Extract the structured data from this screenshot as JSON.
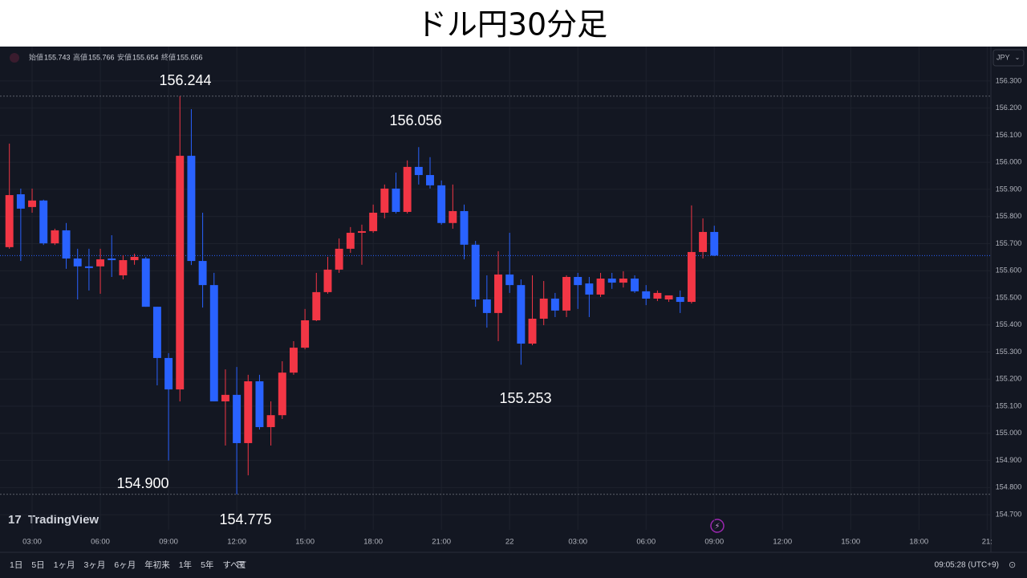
{
  "chart_data": {
    "type": "candlestick",
    "title": "ドル円30分足",
    "currency": "JPY",
    "brand": "TradingView",
    "ohlc_labels": [
      "始値",
      "高値",
      "安値",
      "終値"
    ],
    "ranges": [
      "1日",
      "5日",
      "1ヶ月",
      "3ヶ月",
      "6ヶ月",
      "年初来",
      "1年",
      "5年",
      "すべて"
    ],
    "clock": "09:05:28 (UTC+9)",
    "up_color": "#f23645",
    "down_color": "#2962ff",
    "grid": true,
    "open": [
      155.687,
      155.882,
      155.835,
      155.859,
      155.701,
      155.749,
      155.645,
      155.616,
      155.616,
      155.645,
      155.583,
      155.639,
      155.645,
      155.467,
      155.278,
      155.162,
      156.024,
      155.636,
      155.547,
      155.118,
      155.142,
      154.964,
      155.192,
      155.023,
      155.067,
      155.224,
      155.316,
      155.417,
      155.521,
      155.604,
      155.681,
      155.74,
      155.746,
      155.814,
      155.903,
      155.817,
      155.983,
      155.953,
      155.915,
      155.776,
      155.82,
      155.696,
      155.494,
      155.444,
      155.586,
      155.547,
      155.331,
      155.423,
      155.497,
      155.453,
      155.577,
      155.553,
      155.512,
      155.571,
      155.556,
      155.571,
      155.524,
      155.497,
      155.494,
      155.503,
      155.485,
      155.669,
      155.743
    ],
    "high": [
      156.069,
      155.903,
      155.903,
      155.862,
      155.755,
      155.776,
      155.681,
      155.681,
      155.681,
      155.731,
      155.657,
      155.663,
      155.651,
      155.467,
      155.296,
      156.244,
      156.196,
      155.814,
      155.592,
      155.236,
      155.245,
      155.216,
      155.216,
      155.118,
      155.266,
      155.34,
      155.459,
      155.592,
      155.651,
      155.719,
      155.761,
      155.77,
      155.844,
      155.918,
      155.962,
      156.007,
      156.056,
      156.019,
      155.933,
      155.918,
      155.844,
      155.71,
      155.583,
      155.672,
      155.74,
      155.568,
      155.583,
      155.562,
      155.518,
      155.583,
      155.592,
      155.577,
      155.592,
      155.592,
      155.598,
      155.583,
      155.547,
      155.527,
      155.503,
      155.527,
      155.841,
      155.793,
      155.766
    ],
    "low": [
      155.681,
      155.636,
      155.814,
      155.695,
      155.695,
      155.607,
      155.494,
      155.527,
      155.515,
      155.577,
      155.568,
      155.622,
      155.467,
      155.177,
      154.9,
      155.118,
      155.621,
      155.464,
      155.118,
      154.955,
      154.775,
      154.845,
      155.014,
      154.955,
      155.053,
      155.216,
      155.31,
      155.414,
      155.515,
      155.592,
      155.666,
      155.622,
      155.74,
      155.793,
      155.811,
      155.811,
      155.918,
      155.903,
      155.77,
      155.755,
      155.642,
      155.467,
      155.39,
      155.34,
      155.518,
      155.253,
      155.325,
      155.399,
      155.429,
      155.429,
      155.459,
      155.429,
      155.503,
      155.533,
      155.538,
      155.518,
      155.473,
      155.488,
      155.485,
      155.444,
      155.479,
      155.645,
      155.654
    ],
    "close": [
      155.879,
      155.829,
      155.859,
      155.701,
      155.749,
      155.645,
      155.616,
      155.61,
      155.642,
      155.639,
      155.639,
      155.651,
      155.467,
      155.278,
      155.162,
      156.024,
      155.636,
      155.547,
      155.118,
      155.142,
      154.964,
      155.192,
      155.023,
      155.067,
      155.224,
      155.316,
      155.417,
      155.521,
      155.604,
      155.681,
      155.74,
      155.746,
      155.814,
      155.903,
      155.817,
      155.983,
      155.953,
      155.915,
      155.776,
      155.82,
      155.696,
      155.494,
      155.444,
      155.586,
      155.547,
      155.331,
      155.423,
      155.497,
      155.453,
      155.577,
      155.547,
      155.512,
      155.571,
      155.556,
      155.571,
      155.524,
      155.497,
      155.518,
      155.509,
      155.485,
      155.669,
      155.743,
      155.656
    ],
    "xlim": [
      -0.826,
      86.33
    ],
    "xticks": [
      {
        "value": 2,
        "label": "03:00"
      },
      {
        "value": 8,
        "label": "06:00"
      },
      {
        "value": 14,
        "label": "09:00"
      },
      {
        "value": 20,
        "label": "12:00"
      },
      {
        "value": 26,
        "label": "15:00"
      },
      {
        "value": 32,
        "label": "18:00"
      },
      {
        "value": 38,
        "label": "21:00"
      },
      {
        "value": 44,
        "label": "22"
      },
      {
        "value": 50,
        "label": "03:00"
      },
      {
        "value": 56,
        "label": "06:00"
      },
      {
        "value": 62,
        "label": "09:00"
      },
      {
        "value": 68,
        "label": "12:00"
      },
      {
        "value": 74,
        "label": "15:00"
      },
      {
        "value": 80,
        "label": "18:00"
      },
      {
        "value": 86,
        "label": "21:"
      }
    ],
    "ylim": [
      154.644,
      156.427
    ],
    "yticks": [
      {
        "value": 154.7,
        "label": "154.700"
      },
      {
        "value": 154.8,
        "label": "154.800"
      },
      {
        "value": 154.9,
        "label": "154.900"
      },
      {
        "value": 155.0,
        "label": "155.000"
      },
      {
        "value": 155.1,
        "label": "155.100"
      },
      {
        "value": 155.2,
        "label": "155.200"
      },
      {
        "value": 155.3,
        "label": "155.300"
      },
      {
        "value": 155.4,
        "label": "155.400"
      },
      {
        "value": 155.5,
        "label": "155.500"
      },
      {
        "value": 155.6,
        "label": "155.600"
      },
      {
        "value": 155.7,
        "label": "155.700"
      },
      {
        "value": 155.8,
        "label": "155.800"
      },
      {
        "value": 155.9,
        "label": "155.900"
      },
      {
        "value": 156.0,
        "label": "156.000"
      },
      {
        "value": 156.1,
        "label": "156.100"
      },
      {
        "value": 156.2,
        "label": "156.200"
      },
      {
        "value": 156.3,
        "label": "156.300"
      }
    ],
    "annotations": [
      156.244,
      156.056,
      155.253,
      {
        "value": 154.9,
        "label": "154.900"
      },
      154.775
    ]
  }
}
